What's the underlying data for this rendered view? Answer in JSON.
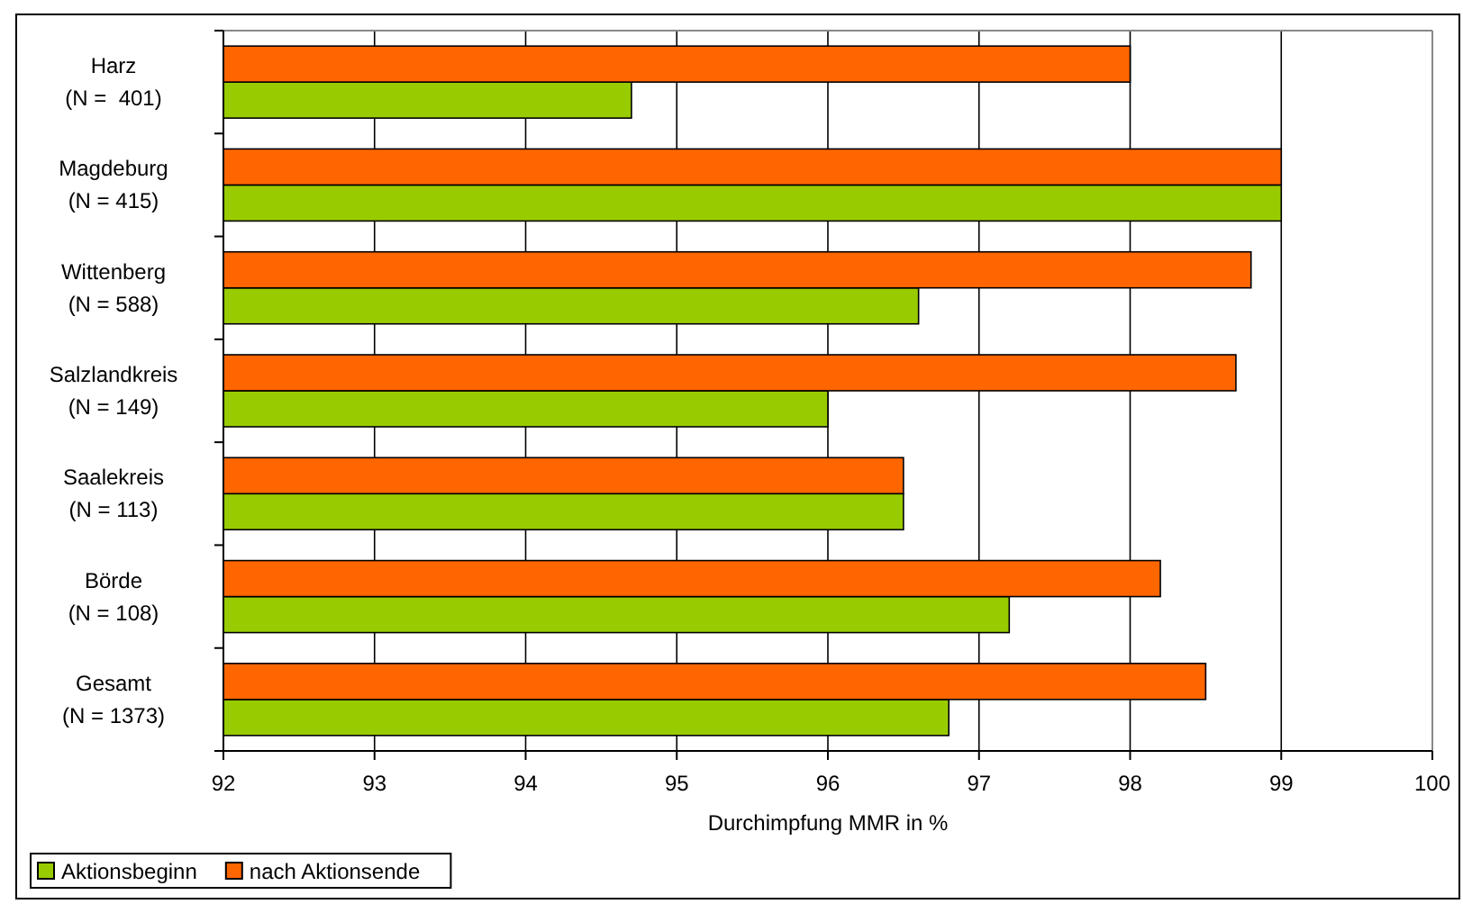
{
  "chart_data": {
    "type": "bar",
    "orientation": "horizontal",
    "xlabel": "Durchimpfung MMR in %",
    "categories": [
      "Harz\n(N =  401)",
      "Magdeburg\n(N = 415)",
      "Wittenberg\n(N = 588)",
      "Salzlandkreis\n(N = 149)",
      "Saalekreis\n(N = 113)",
      "Börde\n(N = 108)",
      "Gesamt\n(N = 1373)"
    ],
    "series": [
      {
        "name": "Aktionsbeginn",
        "color": "#99cc00",
        "values": [
          94.7,
          99.0,
          96.6,
          96.0,
          96.5,
          97.2,
          96.8
        ]
      },
      {
        "name": "nach Aktionsende",
        "color": "#ff6600",
        "values": [
          98.0,
          99.0,
          98.8,
          98.7,
          96.5,
          98.2,
          98.5
        ]
      }
    ],
    "xlim": [
      92,
      100
    ],
    "xticks": [
      92,
      93,
      94,
      95,
      96,
      97,
      98,
      99,
      100
    ],
    "grid": "x",
    "legend": "bottom left"
  }
}
